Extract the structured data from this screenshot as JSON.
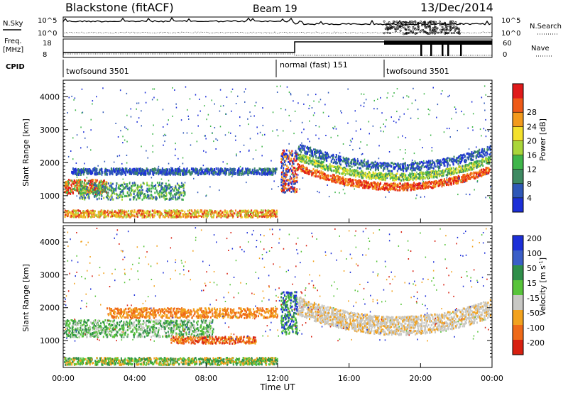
{
  "header": {
    "station": "Blackstone (fitACF)",
    "beam": "Beam 19",
    "date": "13/Dec/2014"
  },
  "sky_panel": {
    "left_label": "N.Sky",
    "right_label": "N.Search",
    "left_ticks": [
      "10^5",
      "10^0"
    ],
    "right_ticks": [
      "10^5",
      "10^0"
    ]
  },
  "freq_panel": {
    "left_label_1": "Freq.",
    "left_label_2": "[MHz]",
    "right_label": "Nave",
    "left_ticks": [
      "18",
      "8"
    ],
    "right_ticks": [
      "60",
      "0"
    ]
  },
  "cpid": {
    "label": "CPID",
    "segments": [
      "twofsound 3501",
      "normal (fast) 151",
      "twofsound 3501"
    ]
  },
  "x_axis": {
    "label": "Time UT",
    "ticks": [
      "00:00",
      "04:00",
      "08:00",
      "12:00",
      "16:00",
      "20:00",
      "00:00"
    ]
  },
  "chart_data": [
    {
      "type": "heatmap",
      "title": "",
      "xlabel": "Time UT",
      "ylabel": "Slant Range [km]",
      "y_ticks": [
        "1000",
        "2000",
        "3000",
        "4000"
      ],
      "colorbar": {
        "label": "Power [dB]",
        "ticks": [
          "4",
          "8",
          "12",
          "16",
          "20",
          "24",
          "28"
        ],
        "colors": [
          "#1c2fd8",
          "#2f58b8",
          "#3e8a62",
          "#3fb64a",
          "#aad63a",
          "#f4e12c",
          "#f39a1c",
          "#ef5a17",
          "#e01a1a"
        ]
      }
    },
    {
      "type": "heatmap",
      "title": "",
      "xlabel": "Time UT",
      "ylabel": "Slant Range [km]",
      "y_ticks": [
        "1000",
        "2000",
        "3000",
        "4000"
      ],
      "colorbar": {
        "label_main": "Velocity",
        "label_unit": "[m s",
        "label_sup": "-1",
        "label_end": "]",
        "ticks": [
          "200",
          "100",
          "50",
          "15",
          "-15",
          "-50",
          "-100",
          "-200"
        ],
        "colors": [
          "#1c2fd8",
          "#3b5fc8",
          "#2f8f4a",
          "#58c43a",
          "#c8c8c4",
          "#f2a21e",
          "#ef6a18",
          "#d82010"
        ]
      }
    }
  ]
}
